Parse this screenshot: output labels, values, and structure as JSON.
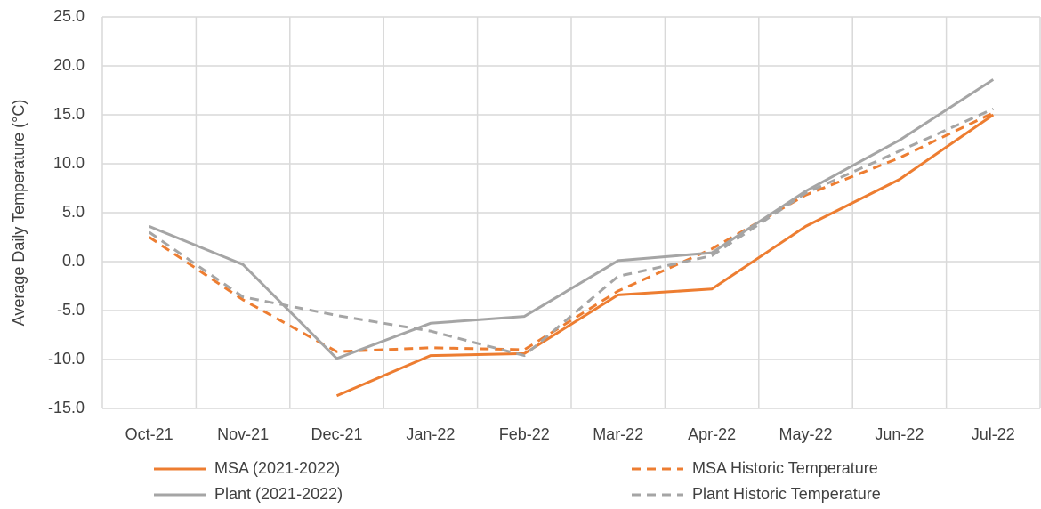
{
  "chart_data": {
    "type": "line",
    "y_label": "Average Daily Temperature (°C)",
    "categories": [
      "Oct-21",
      "Nov-21",
      "Dec-21",
      "Jan-22",
      "Feb-22",
      "Mar-22",
      "Apr-22",
      "May-22",
      "Jun-22",
      "Jul-22"
    ],
    "ylim": [
      -15,
      25
    ],
    "yticks": [
      {
        "value": -15,
        "label": "-15.0"
      },
      {
        "value": -10,
        "label": "-10.0"
      },
      {
        "value": -5,
        "label": "-5.0"
      },
      {
        "value": 0,
        "label": "0.0"
      },
      {
        "value": 5,
        "label": "5.0"
      },
      {
        "value": 10,
        "label": "10.0"
      },
      {
        "value": 15,
        "label": "15.0"
      },
      {
        "value": 20,
        "label": "20.0"
      },
      {
        "value": 25,
        "label": "25.0"
      }
    ],
    "grid": true,
    "series": [
      {
        "name": "MSA (2021-2022)",
        "color": "#ed7d31",
        "dashed": false,
        "values": [
          null,
          null,
          -13.7,
          -9.6,
          -9.4,
          -3.4,
          -2.8,
          3.6,
          8.4,
          15.0
        ]
      },
      {
        "name": "MSA Historic Temperature",
        "color": "#ed7d31",
        "dashed": true,
        "values": [
          2.5,
          -3.9,
          -9.2,
          -8.8,
          -9.0,
          -3.0,
          1.3,
          6.8,
          10.6,
          15.2
        ]
      },
      {
        "name": "Plant (2021-2022)",
        "color": "#a5a5a5",
        "dashed": false,
        "values": [
          3.6,
          -0.3,
          -9.9,
          -6.3,
          -5.6,
          0.1,
          0.9,
          7.2,
          12.4,
          18.6
        ]
      },
      {
        "name": "Plant Historic Temperature",
        "color": "#a5a5a5",
        "dashed": true,
        "values": [
          3.0,
          -3.6,
          -5.5,
          -7.1,
          -9.6,
          -1.5,
          0.6,
          7.0,
          11.3,
          15.6
        ]
      }
    ]
  }
}
